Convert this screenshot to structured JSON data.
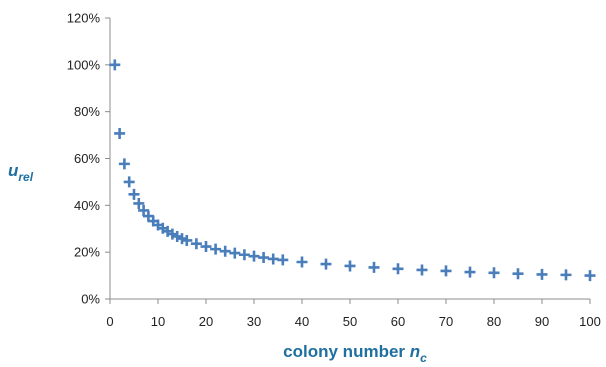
{
  "chart_data": {
    "type": "scatter",
    "title": "",
    "xlabel_main": "colony number ",
    "xlabel_var": "n",
    "xlabel_sub": "c",
    "ylabel_var": "u",
    "ylabel_sub": "rel",
    "xlim": [
      0,
      100
    ],
    "ylim": [
      0,
      1.2
    ],
    "x_ticks": [
      0,
      10,
      20,
      30,
      40,
      50,
      60,
      70,
      80,
      90,
      100
    ],
    "x_tick_labels": [
      "0",
      "10",
      "20",
      "30",
      "40",
      "50",
      "60",
      "70",
      "80",
      "90",
      "100"
    ],
    "y_ticks": [
      0,
      0.2,
      0.4,
      0.6,
      0.8,
      1.0,
      1.2
    ],
    "y_tick_labels": [
      "0%",
      "20%",
      "40%",
      "60%",
      "80%",
      "100%",
      "120%"
    ],
    "grid": false,
    "legend": "none",
    "marker": "plus",
    "marker_color": "#4a7ebb",
    "axis_title_color": "#1f6f9f",
    "series": [
      {
        "x": [
          1,
          2,
          3,
          4,
          5,
          6,
          7,
          8,
          9,
          10,
          11,
          12,
          13,
          14,
          15,
          16,
          18,
          20,
          22,
          24,
          26,
          28,
          30,
          32,
          34,
          36,
          40,
          45,
          50,
          55,
          60,
          65,
          70,
          75,
          80,
          85,
          90,
          95,
          100
        ],
        "y": [
          1.0,
          0.707,
          0.577,
          0.5,
          0.447,
          0.408,
          0.378,
          0.354,
          0.333,
          0.316,
          0.302,
          0.289,
          0.277,
          0.267,
          0.258,
          0.25,
          0.236,
          0.224,
          0.213,
          0.204,
          0.196,
          0.189,
          0.183,
          0.177,
          0.171,
          0.167,
          0.158,
          0.149,
          0.141,
          0.135,
          0.129,
          0.124,
          0.12,
          0.115,
          0.112,
          0.108,
          0.105,
          0.103,
          0.1
        ]
      }
    ]
  }
}
